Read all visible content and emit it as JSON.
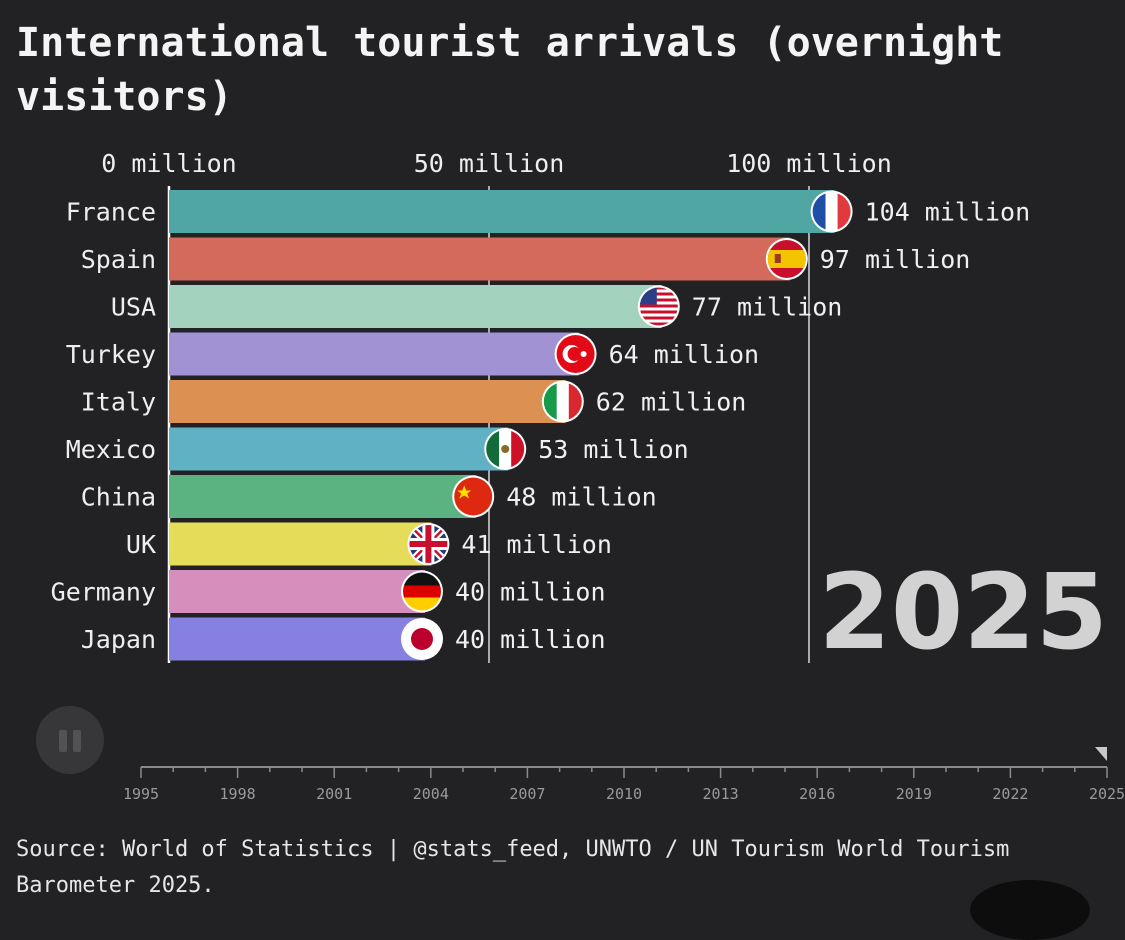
{
  "title": "International tourist arrivals (overnight visitors)",
  "source": "Source: World of Statistics | @stats_feed, UNWTO / UN Tourism World Tourism Barometer 2025.",
  "chart_data": {
    "type": "bar",
    "orientation": "horizontal",
    "title": "International tourist arrivals (overnight visitors)",
    "year": "2025",
    "xlim": [
      0,
      110
    ],
    "x_ticks": [
      {
        "value": 0,
        "label": "0 million"
      },
      {
        "value": 50,
        "label": "50 million"
      },
      {
        "value": 100,
        "label": "100 million"
      }
    ],
    "categories": [
      "France",
      "Spain",
      "USA",
      "Turkey",
      "Italy",
      "Mexico",
      "China",
      "UK",
      "Germany",
      "Japan"
    ],
    "values": [
      104,
      97,
      77,
      64,
      62,
      53,
      48,
      41,
      40,
      40
    ],
    "value_labels": [
      "104 million",
      "97 million",
      "77 million",
      "64 million",
      "62 million",
      "53 million",
      "48 million",
      "41 million",
      "40 million",
      "40 million"
    ],
    "colors": [
      "#4fa6a2",
      "#d36a5b",
      "#a3d3bf",
      "#a192d4",
      "#dc9152",
      "#5fb1c3",
      "#5cb382",
      "#e5dc5a",
      "#d68fbc",
      "#8580e2"
    ],
    "flag_icons": [
      "flag-france-icon",
      "flag-spain-icon",
      "flag-usa-icon",
      "flag-turkey-icon",
      "flag-italy-icon",
      "flag-mexico-icon",
      "flag-china-icon",
      "flag-uk-icon",
      "flag-germany-icon",
      "flag-japan-icon"
    ],
    "grid": true
  },
  "timeline": {
    "range": [
      1995,
      2025
    ],
    "current": 2025,
    "tick_labels": [
      "1995",
      "1998",
      "2001",
      "2004",
      "2007",
      "2010",
      "2013",
      "2016",
      "2019",
      "2022",
      "2025"
    ]
  },
  "controls": {
    "pause_icon": "pause-icon"
  }
}
